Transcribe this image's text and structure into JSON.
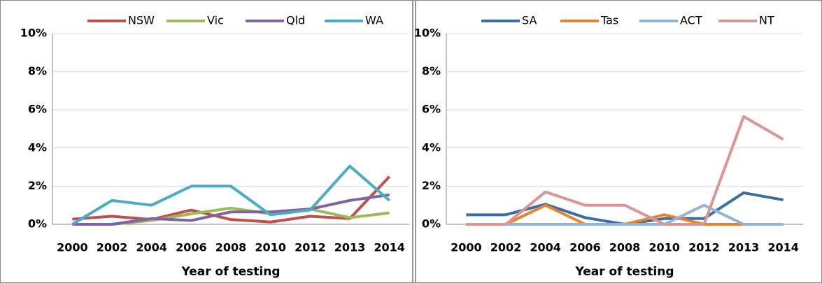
{
  "chart_data": [
    {
      "type": "line",
      "x_label": "Year of testing",
      "categories": [
        "2000",
        "2002",
        "2004",
        "2006",
        "2008",
        "2010",
        "2012",
        "2013",
        "2014"
      ],
      "series": [
        {
          "name": "NSW",
          "color": "#c0504d",
          "values": [
            0.27,
            0.42,
            0.25,
            0.75,
            0.25,
            0.12,
            0.42,
            0.3,
            2.5
          ]
        },
        {
          "name": "Vic",
          "color": "#9bbb59",
          "values": [
            0,
            0,
            0.2,
            0.55,
            0.85,
            0.55,
            0.8,
            0.35,
            0.6
          ]
        },
        {
          "name": "Qld",
          "color": "#8064a2",
          "values": [
            0,
            0,
            0.3,
            0.2,
            0.65,
            0.65,
            0.8,
            1.25,
            1.55
          ]
        },
        {
          "name": "WA",
          "color": "#4bacc6",
          "values": [
            0,
            1.25,
            1.0,
            2.0,
            2.0,
            0.5,
            0.75,
            3.05,
            1.25
          ]
        }
      ],
      "ylim": [
        0,
        10
      ],
      "yticks": [
        {
          "value": 0,
          "label": "0%"
        },
        {
          "value": 2,
          "label": "2%"
        },
        {
          "value": 4,
          "label": "4%"
        },
        {
          "value": 6,
          "label": "6%"
        },
        {
          "value": 8,
          "label": "8%"
        },
        {
          "value": 10,
          "label": "10%"
        }
      ],
      "grid": true,
      "legend": "top"
    },
    {
      "type": "line",
      "x_label": "Year of testing",
      "categories": [
        "2000",
        "2002",
        "2004",
        "2006",
        "2008",
        "2010",
        "2012",
        "2013",
        "2014"
      ],
      "series": [
        {
          "name": "SA",
          "color": "#3a6ea5",
          "values": [
            0.5,
            0.5,
            1.05,
            0.35,
            0,
            0.3,
            0.3,
            1.65,
            1.28
          ]
        },
        {
          "name": "Tas",
          "color": "#e6842d",
          "values": [
            0,
            0,
            1.0,
            0,
            0,
            0.5,
            0,
            0,
            0
          ]
        },
        {
          "name": "ACT",
          "color": "#95b3d7",
          "values": [
            0,
            0,
            0,
            0,
            0,
            0,
            1.0,
            0,
            0
          ]
        },
        {
          "name": "NT",
          "color": "#d99694",
          "values": [
            0,
            0,
            1.7,
            1.0,
            1.0,
            0,
            0,
            5.65,
            4.45
          ]
        }
      ],
      "ylim": [
        0,
        10
      ],
      "yticks": [
        {
          "value": 0,
          "label": "0%"
        },
        {
          "value": 2,
          "label": "2%"
        },
        {
          "value": 4,
          "label": "4%"
        },
        {
          "value": 6,
          "label": "6%"
        },
        {
          "value": 8,
          "label": "8%"
        },
        {
          "value": 10,
          "label": "10%"
        }
      ],
      "grid": true,
      "legend": "top"
    }
  ]
}
